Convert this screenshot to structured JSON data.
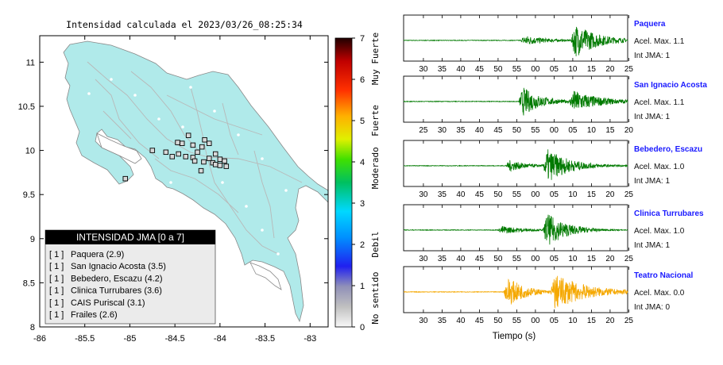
{
  "map": {
    "title": "Intensidad calculada el 2023/03/26_08:25:34",
    "lon_ticks": [
      "-86",
      "-85.5",
      "-85",
      "-84.5",
      "-84",
      "-83.5",
      "-83"
    ],
    "lat_ticks": [
      "8",
      "8.5",
      "9",
      "9.5",
      "10",
      "10.5",
      "11"
    ],
    "lon_range": [
      -86,
      -82.8
    ],
    "lat_range": [
      8,
      11.3
    ],
    "land_color": "#b0eaea",
    "stations": [
      {
        "lon": -84.53,
        "lat": 9.93
      },
      {
        "lon": -84.46,
        "lat": 9.96
      },
      {
        "lon": -84.38,
        "lat": 9.93
      },
      {
        "lon": -84.3,
        "lat": 9.92
      },
      {
        "lon": -84.18,
        "lat": 9.87
      },
      {
        "lon": -84.12,
        "lat": 9.91
      },
      {
        "lon": -84.08,
        "lat": 9.86
      },
      {
        "lon": -84.05,
        "lat": 9.84
      },
      {
        "lon": -84.0,
        "lat": 9.83
      },
      {
        "lon": -83.93,
        "lat": 9.82
      },
      {
        "lon": -84.05,
        "lat": 9.96
      },
      {
        "lon": -84.12,
        "lat": 10.08
      },
      {
        "lon": -84.2,
        "lat": 10.04
      },
      {
        "lon": -84.25,
        "lat": 9.98
      },
      {
        "lon": -84.3,
        "lat": 10.06
      },
      {
        "lon": -84.42,
        "lat": 10.08
      },
      {
        "lon": -84.47,
        "lat": 10.09
      },
      {
        "lon": -84.17,
        "lat": 10.12
      },
      {
        "lon": -84.21,
        "lat": 9.77
      },
      {
        "lon": -84.0,
        "lat": 9.9
      },
      {
        "lon": -83.95,
        "lat": 9.88
      },
      {
        "lon": -84.6,
        "lat": 9.98
      },
      {
        "lon": -84.75,
        "lat": 10.0
      },
      {
        "lon": -85.05,
        "lat": 9.68
      },
      {
        "lon": -84.35,
        "lat": 10.17
      },
      {
        "lon": -84.28,
        "lat": 9.88
      }
    ]
  },
  "legend": {
    "title": "INTENSIDAD JMA [0 a 7]",
    "items": [
      {
        "level": "[ 1 ]",
        "label": "Paquera (2.9)"
      },
      {
        "level": "[ 1 ]",
        "label": "San Ignacio Acosta (3.5)"
      },
      {
        "level": "[ 1 ]",
        "label": "Bebedero, Escazu (4.2)"
      },
      {
        "level": "[ 1 ]",
        "label": "Clinica Turrubares (3.6)"
      },
      {
        "level": "[ 1 ]",
        "label": "CAIS Puriscal (3.1)"
      },
      {
        "level": "[ 1 ]",
        "label": "Frailes (2.6)"
      }
    ]
  },
  "colorbar": {
    "ticks": [
      "0",
      "1",
      "2",
      "3",
      "4",
      "5",
      "6",
      "7"
    ],
    "range": [
      0,
      7
    ],
    "categories": [
      "No sentido",
      "Debil",
      "Moderado",
      "Fuerte",
      "Muy Fuerte"
    ]
  },
  "chart_data": [
    {
      "type": "line",
      "name": "waveforms",
      "xlabel": "Tiempo (s)",
      "stations": [
        {
          "name": "Paquera",
          "accel": "Acel. Max. 1.1",
          "int": "Int JMA: 1",
          "color": "#007a00",
          "x_ticks": [
            "30",
            "35",
            "40",
            "45",
            "50",
            "55",
            "00",
            "05",
            "10",
            "15",
            "20",
            "25"
          ],
          "first_tick": 30,
          "events": [
            {
              "t": 56,
              "amp": 0.3,
              "dur": 10
            },
            {
              "t": 69.5,
              "amp": 1.0,
              "dur": 10
            }
          ]
        },
        {
          "name": "San Ignacio Acosta",
          "accel": "Acel. Max. 1.1",
          "int": "Int JMA: 1",
          "color": "#007a00",
          "x_ticks": [
            "25",
            "30",
            "35",
            "40",
            "45",
            "50",
            "55",
            "00",
            "05",
            "10",
            "15",
            "20"
          ],
          "first_tick": 25,
          "events": [
            {
              "t": 50.5,
              "amp": 0.9,
              "dur": 8
            },
            {
              "t": 64,
              "amp": 0.65,
              "dur": 12
            }
          ]
        },
        {
          "name": "Bebedero, Escazu",
          "accel": "Acel. Max. 1.0",
          "int": "Int JMA: 1",
          "color": "#007a00",
          "x_ticks": [
            "30",
            "35",
            "40",
            "45",
            "50",
            "55",
            "00",
            "05",
            "10",
            "15",
            "20",
            "25"
          ],
          "first_tick": 30,
          "events": [
            {
              "t": 52,
              "amp": 0.35,
              "dur": 8
            },
            {
              "t": 62,
              "amp": 1.0,
              "dur": 10
            }
          ]
        },
        {
          "name": "Clinica Turrubares",
          "accel": "Acel. Max. 1.0",
          "int": "Int JMA: 1",
          "color": "#007a00",
          "x_ticks": [
            "30",
            "35",
            "40",
            "45",
            "50",
            "55",
            "00",
            "05",
            "10",
            "15",
            "20",
            "25"
          ],
          "first_tick": 30,
          "events": [
            {
              "t": 50,
              "amp": 0.25,
              "dur": 10
            },
            {
              "t": 62,
              "amp": 1.0,
              "dur": 9
            }
          ]
        },
        {
          "name": "Teatro Nacional",
          "accel": "Acel. Max. 0.0",
          "int": "Int JMA: 0",
          "color": "#f5a800",
          "x_ticks": [
            "30",
            "35",
            "40",
            "45",
            "50",
            "55",
            "00",
            "05",
            "10",
            "15",
            "20",
            "25"
          ],
          "first_tick": 30,
          "events": [
            {
              "t": 51.5,
              "amp": 0.9,
              "dur": 8
            },
            {
              "t": 64,
              "amp": 1.0,
              "dur": 14
            }
          ]
        }
      ]
    }
  ]
}
